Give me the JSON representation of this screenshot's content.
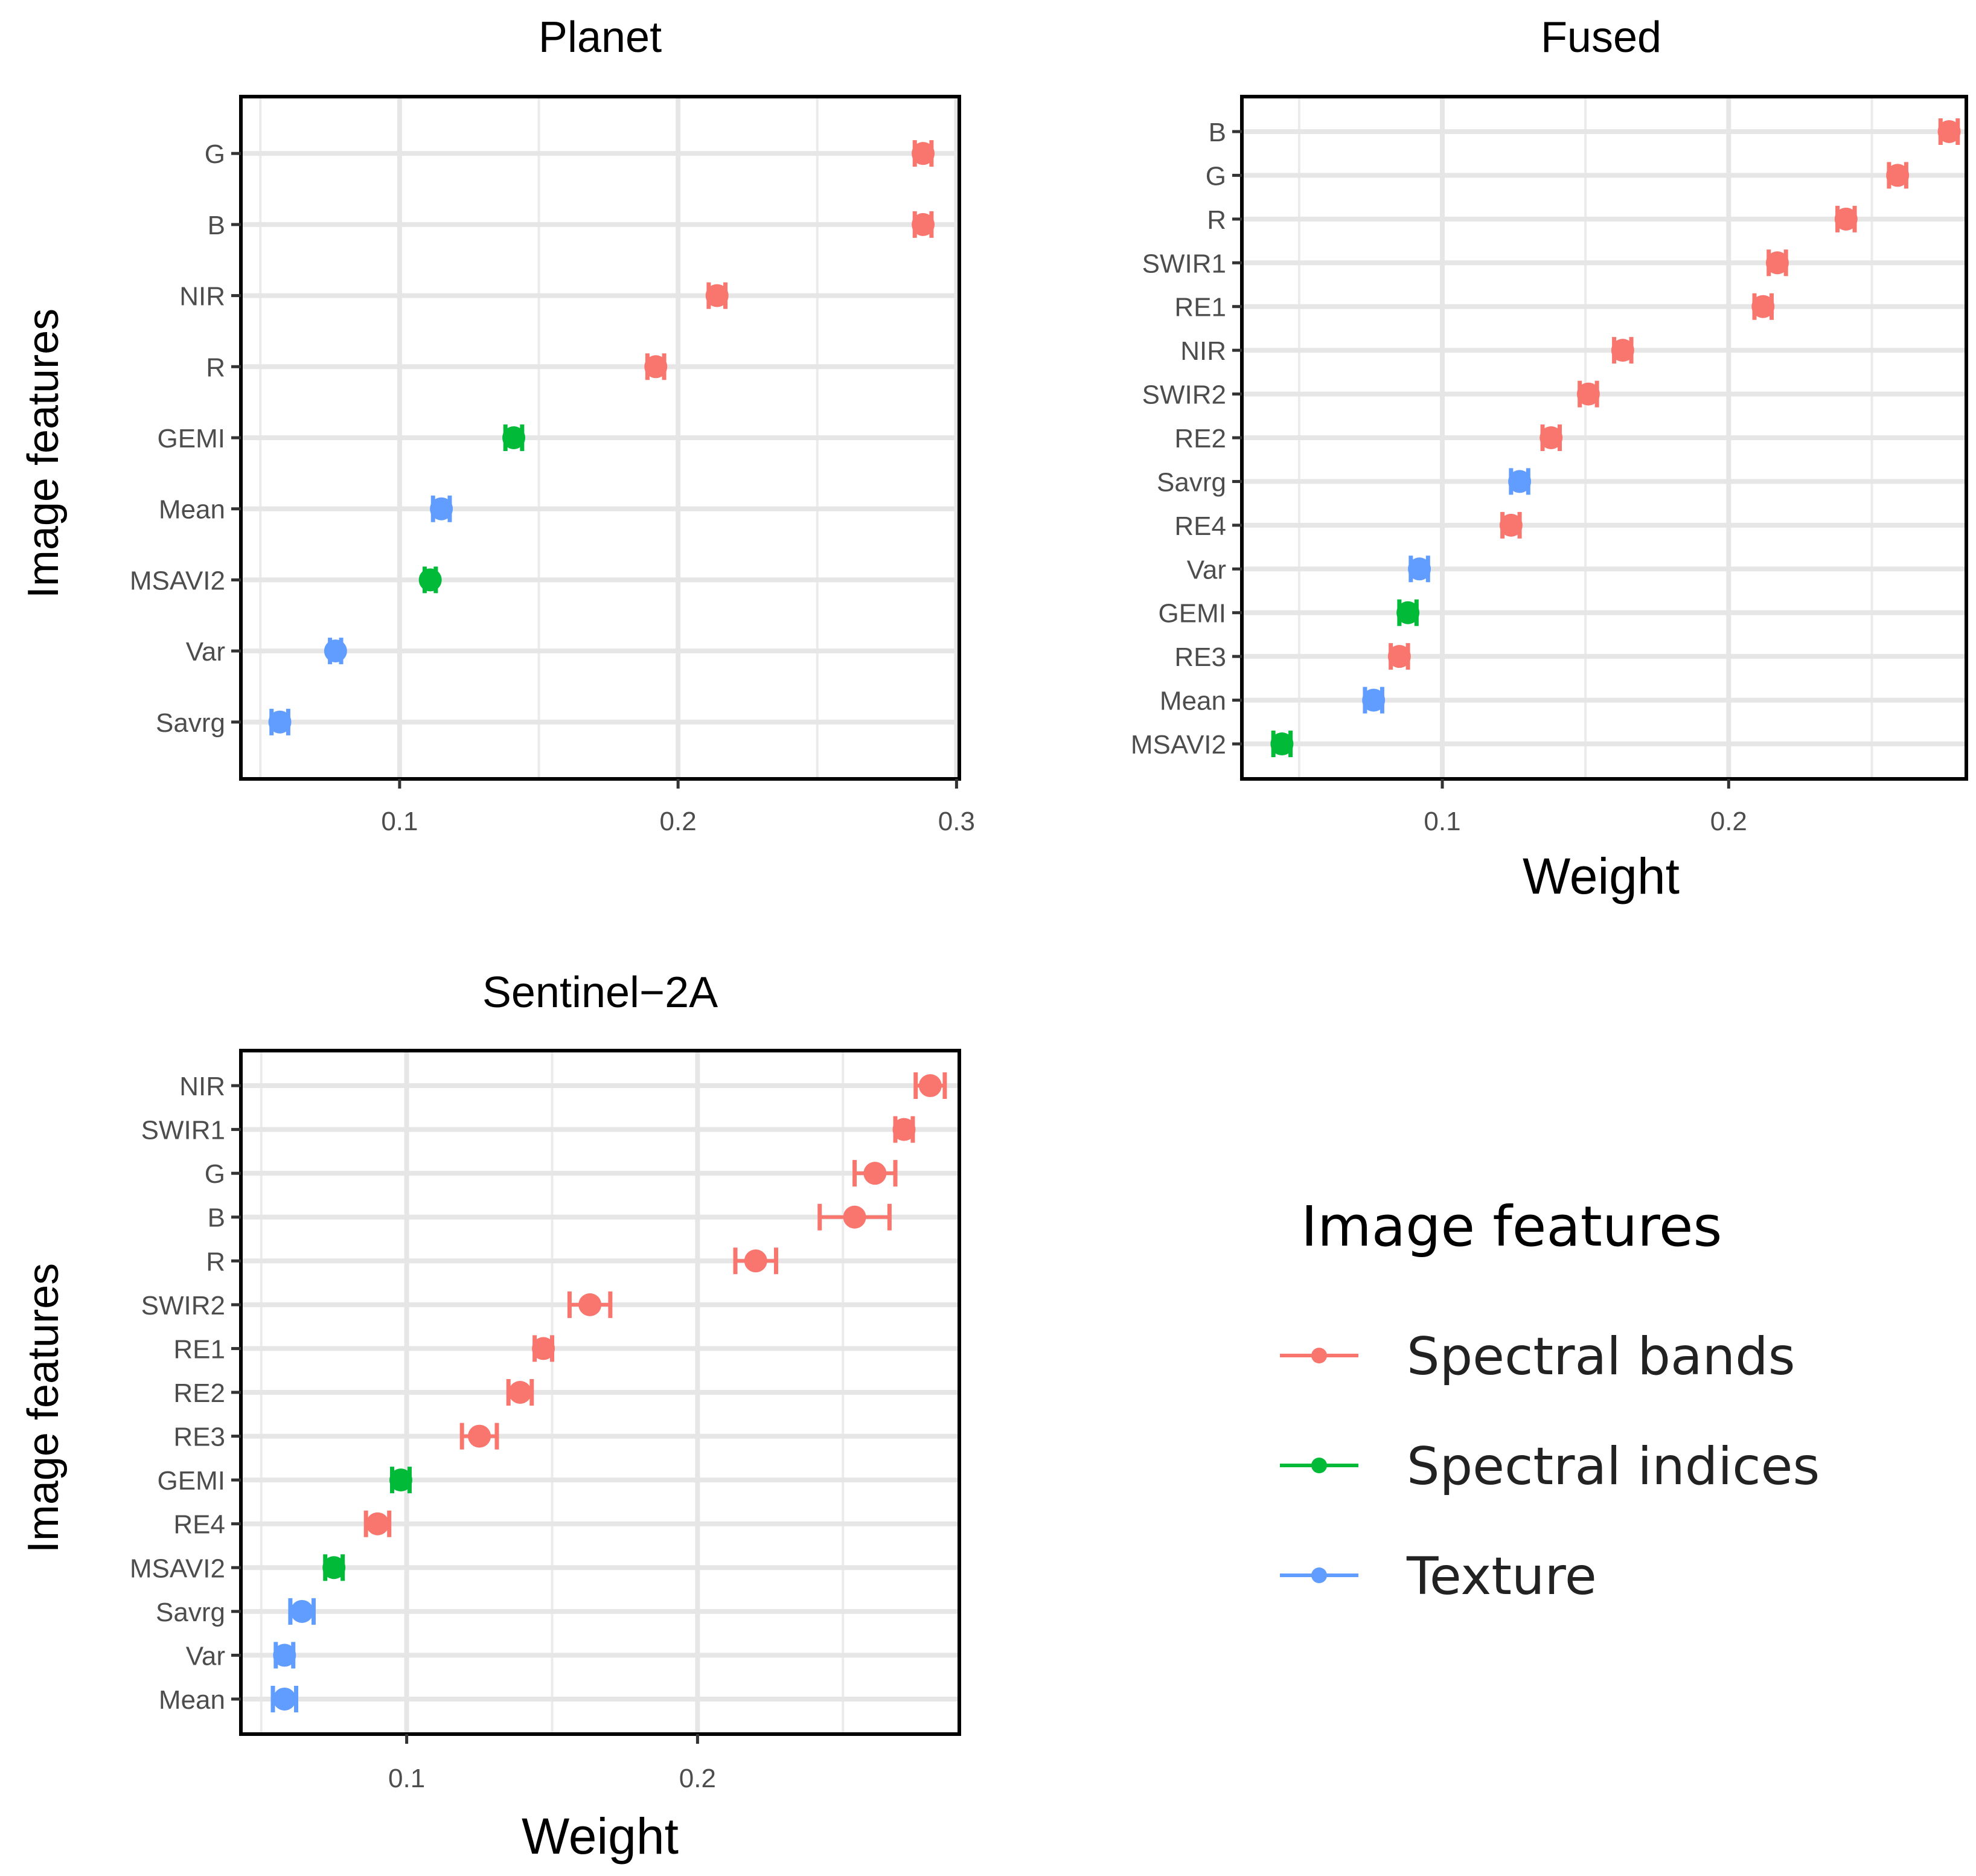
{
  "chart_data": [
    {
      "type": "scatter",
      "title": "Planet",
      "ylabel": "Image features",
      "xlabel": "",
      "xlim": [
        0.043,
        0.301
      ],
      "xticks": [
        0.1,
        0.2,
        0.3
      ],
      "xtick_labels": [
        "0.1",
        "0.2",
        "0.3"
      ],
      "grid": true,
      "categories": [
        "G",
        "B",
        "NIR",
        "R",
        "GEMI",
        "Mean",
        "MSAVI2",
        "Var",
        "Savrg"
      ],
      "values": [
        0.288,
        0.288,
        0.214,
        0.192,
        0.141,
        0.115,
        0.111,
        0.077,
        0.057
      ],
      "errors": [
        0.003,
        0.003,
        0.003,
        0.003,
        0.003,
        0.003,
        0.002,
        0.002,
        0.003
      ],
      "groups": [
        "Spectral bands",
        "Spectral bands",
        "Spectral bands",
        "Spectral bands",
        "Spectral indices",
        "Texture",
        "Spectral indices",
        "Texture",
        "Texture"
      ]
    },
    {
      "type": "scatter",
      "title": "Fused",
      "ylabel": "",
      "xlabel": "Weight",
      "xlim": [
        0.03,
        0.283
      ],
      "xticks": [
        0.1,
        0.2
      ],
      "xtick_labels": [
        "0.1",
        "0.2"
      ],
      "grid": true,
      "categories": [
        "B",
        "G",
        "R",
        "SWIR1",
        "RE1",
        "NIR",
        "SWIR2",
        "RE2",
        "Savrg",
        "RE4",
        "Var",
        "GEMI",
        "RE3",
        "Mean",
        "MSAVI2"
      ],
      "values": [
        0.277,
        0.259,
        0.241,
        0.217,
        0.212,
        0.163,
        0.151,
        0.138,
        0.127,
        0.124,
        0.092,
        0.088,
        0.085,
        0.076,
        0.044
      ],
      "errors": [
        0.003,
        0.003,
        0.003,
        0.003,
        0.003,
        0.003,
        0.003,
        0.003,
        0.003,
        0.003,
        0.003,
        0.003,
        0.003,
        0.003,
        0.003
      ],
      "groups": [
        "Spectral bands",
        "Spectral bands",
        "Spectral bands",
        "Spectral bands",
        "Spectral bands",
        "Spectral bands",
        "Spectral bands",
        "Spectral bands",
        "Texture",
        "Spectral bands",
        "Texture",
        "Spectral indices",
        "Spectral bands",
        "Texture",
        "Spectral indices"
      ]
    },
    {
      "type": "scatter",
      "title": "Sentinel−2A",
      "ylabel": "Image features",
      "xlabel": "Weight",
      "xlim": [
        0.043,
        0.29
      ],
      "xticks": [
        0.1,
        0.2
      ],
      "xtick_labels": [
        "0.1",
        "0.2"
      ],
      "grid": true,
      "categories": [
        "NIR",
        "SWIR1",
        "G",
        "B",
        "R",
        "SWIR2",
        "RE1",
        "RE2",
        "RE3",
        "GEMI",
        "RE4",
        "MSAVI2",
        "Savrg",
        "Var",
        "Mean"
      ],
      "values": [
        0.28,
        0.271,
        0.261,
        0.254,
        0.22,
        0.163,
        0.147,
        0.139,
        0.125,
        0.098,
        0.09,
        0.075,
        0.064,
        0.058,
        0.058
      ],
      "errors": [
        0.005,
        0.003,
        0.007,
        0.012,
        0.007,
        0.007,
        0.003,
        0.004,
        0.006,
        0.003,
        0.004,
        0.003,
        0.004,
        0.003,
        0.004
      ],
      "groups": [
        "Spectral bands",
        "Spectral bands",
        "Spectral bands",
        "Spectral bands",
        "Spectral bands",
        "Spectral bands",
        "Spectral bands",
        "Spectral bands",
        "Spectral bands",
        "Spectral indices",
        "Spectral bands",
        "Spectral indices",
        "Texture",
        "Texture",
        "Texture"
      ]
    }
  ],
  "legend": {
    "title": "Image features",
    "placement": "bottom-right",
    "items": [
      {
        "label": "Spectral bands",
        "color": "#F8766D"
      },
      {
        "label": "Spectral indices",
        "color": "#00BA38"
      },
      {
        "label": "Texture",
        "color": "#619CFF"
      }
    ]
  }
}
